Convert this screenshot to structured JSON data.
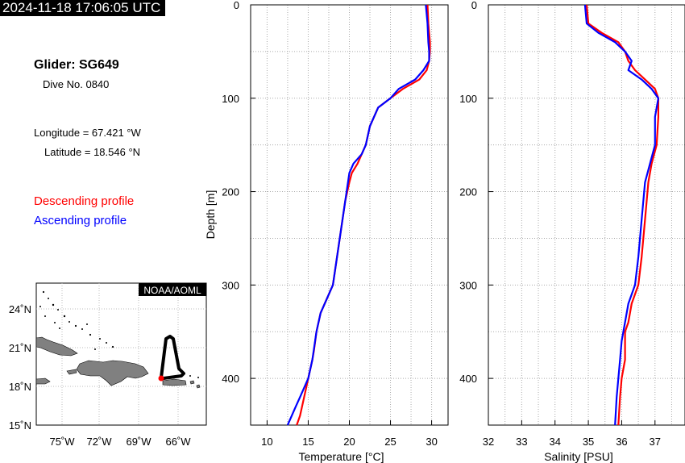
{
  "header": {
    "timestamp": "2024-11-18 17:06:05 UTC"
  },
  "info": {
    "glider": "Glider: SG649",
    "dive": "Dive No. 0840",
    "longitude": "Longitude = 67.421 °W",
    "latitude": "Latitude = 18.546 °N",
    "descending_label": "Descending profile",
    "ascending_label": "Ascending profile",
    "descending_color": "#ff0000",
    "ascending_color": "#0000ff"
  },
  "map": {
    "credit": "NOAA/AOML",
    "lon_ticks": [
      "75˚W",
      "72˚W",
      "69˚W",
      "66˚W"
    ],
    "lat_ticks": [
      "24˚N",
      "21˚N",
      "18˚N",
      "15˚N"
    ],
    "glider_position": {
      "lon": -67.421,
      "lat": 18.546
    }
  },
  "chart_data": [
    {
      "type": "line",
      "xlabel": "Temperature [°C]",
      "ylabel": "Depth [m]",
      "xlim": [
        8,
        32
      ],
      "ylim": [
        0,
        450
      ],
      "x_ticks": [
        10,
        15,
        20,
        25,
        30
      ],
      "y_ticks": [
        0,
        100,
        200,
        300,
        400
      ],
      "grid": true,
      "series": [
        {
          "name": "Descending profile",
          "color": "#ff0000",
          "x": [
            29.5,
            29.6,
            29.8,
            29.8,
            29.7,
            29.4,
            28.5,
            26.5,
            25.0,
            23.5,
            22.5,
            22.0,
            21.5,
            21.0,
            20.3,
            20.0,
            19.5,
            19.0,
            18.5,
            18.0,
            17.5,
            17.0,
            16.5,
            16.0,
            15.7,
            15.5,
            15.0,
            14.5,
            14.0,
            13.6
          ],
          "y": [
            0,
            20,
            40,
            50,
            60,
            70,
            80,
            90,
            100,
            110,
            130,
            150,
            160,
            170,
            180,
            190,
            210,
            240,
            270,
            300,
            310,
            320,
            330,
            350,
            370,
            380,
            400,
            420,
            440,
            450
          ]
        },
        {
          "name": "Ascending profile",
          "color": "#0000ff",
          "x": [
            29.3,
            29.5,
            29.6,
            29.7,
            29.7,
            29.0,
            28.0,
            26.0,
            25.0,
            23.5,
            23.0,
            22.5,
            22.0,
            21.5,
            20.5,
            20.0,
            19.5,
            19.0,
            18.5,
            18.0,
            17.5,
            16.5,
            16.0,
            15.5,
            15.0,
            14.5,
            14.0,
            13.5,
            13.0,
            12.5
          ],
          "y": [
            0,
            20,
            40,
            50,
            60,
            70,
            80,
            90,
            100,
            110,
            120,
            130,
            150,
            160,
            170,
            180,
            210,
            240,
            270,
            300,
            310,
            330,
            350,
            380,
            400,
            410,
            420,
            430,
            440,
            450
          ]
        }
      ]
    },
    {
      "type": "line",
      "xlabel": "Salinity [PSU]",
      "ylabel": "",
      "xlim": [
        32,
        37.9
      ],
      "ylim": [
        0,
        450
      ],
      "x_ticks": [
        32,
        33,
        34,
        35,
        36,
        37
      ],
      "y_ticks": [
        0,
        100,
        200,
        300,
        400
      ],
      "grid": true,
      "series": [
        {
          "name": "Descending profile",
          "color": "#ff0000",
          "x": [
            34.95,
            35.0,
            35.4,
            35.9,
            36.1,
            36.2,
            36.4,
            36.7,
            37.0,
            37.1,
            37.1,
            37.05,
            36.9,
            36.8,
            36.7,
            36.6,
            36.5,
            36.3,
            36.2,
            36.1,
            36.1,
            36.0,
            35.95,
            35.9
          ],
          "y": [
            0,
            20,
            30,
            40,
            50,
            60,
            70,
            80,
            90,
            100,
            120,
            150,
            170,
            190,
            230,
            270,
            300,
            320,
            340,
            350,
            380,
            400,
            420,
            450
          ]
        },
        {
          "name": "Ascending profile",
          "color": "#0000ff",
          "x": [
            34.9,
            34.95,
            35.3,
            35.8,
            36.1,
            36.3,
            36.2,
            36.6,
            36.9,
            37.1,
            37.0,
            37.0,
            36.85,
            36.7,
            36.6,
            36.5,
            36.4,
            36.2,
            36.1,
            36.0,
            35.95,
            35.9,
            35.85,
            35.8
          ],
          "y": [
            0,
            20,
            30,
            40,
            50,
            60,
            70,
            80,
            90,
            100,
            120,
            150,
            170,
            190,
            230,
            270,
            300,
            320,
            340,
            360,
            380,
            400,
            420,
            450
          ]
        }
      ]
    }
  ]
}
